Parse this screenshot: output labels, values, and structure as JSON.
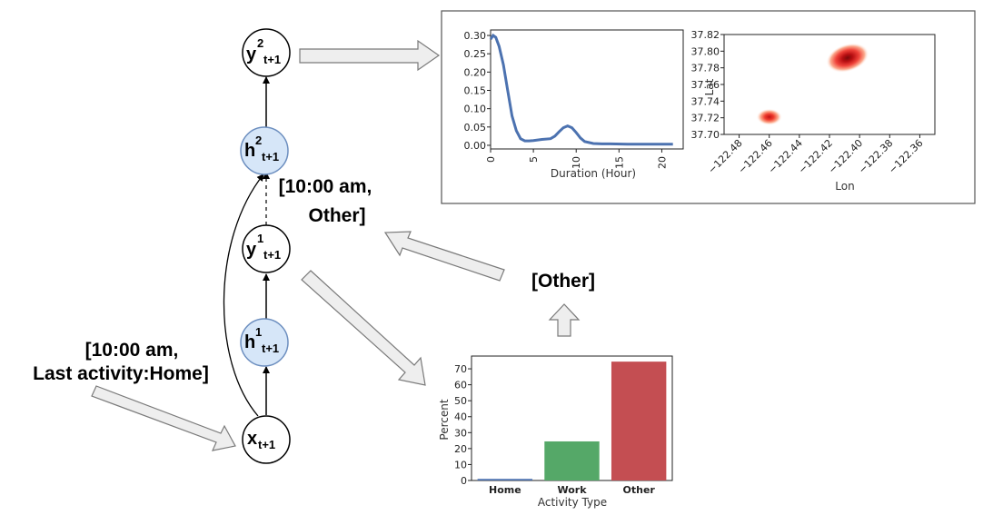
{
  "nodes": {
    "y2": {
      "base": "y",
      "sup": "2",
      "sub": "t+1"
    },
    "h2": {
      "base": "h",
      "sup": "2",
      "sub": "t+1"
    },
    "y1": {
      "base": "y",
      "sup": "1",
      "sub": "t+1"
    },
    "h1": {
      "base": "h",
      "sup": "1",
      "sub": "t+1"
    },
    "x": {
      "base": "x",
      "sub": "t+1"
    }
  },
  "annotations": {
    "input_line1": "[10:00 am,",
    "input_line2": "Last activity:Home]",
    "mid_line1": "[10:00 am,",
    "mid_line2": "Other]",
    "sampled": "[Other]"
  },
  "colors": {
    "hidden_fill": "#d6e6f8",
    "hidden_stroke": "#6c8ebf",
    "line_series": "#4c72b0",
    "bar_home": "#4c72b0",
    "bar_work": "#55a868",
    "bar_other": "#c44e52",
    "heat_core": "#8b0000",
    "heat_mid": "#e8302a",
    "heat_edge": "#fdd9c8"
  },
  "chart_data": [
    {
      "type": "line",
      "title": "",
      "xlabel": "Duration (Hour)",
      "ylabel": "",
      "xlim": [
        0,
        22.5
      ],
      "ylim": [
        -0.01,
        0.315
      ],
      "xticks": [
        "0",
        "5",
        "10",
        "15",
        "20"
      ],
      "yticks": [
        "0.00",
        "0.05",
        "0.10",
        "0.15",
        "0.20",
        "0.25",
        "0.30"
      ],
      "x": [
        0,
        0.3,
        0.6,
        1,
        1.5,
        2,
        2.5,
        3,
        3.5,
        4,
        4.5,
        5,
        6,
        7,
        7.5,
        8,
        8.5,
        9,
        9.5,
        10,
        10.5,
        11,
        12,
        13,
        14,
        16,
        18,
        20,
        21.3
      ],
      "y": [
        0.29,
        0.3,
        0.295,
        0.27,
        0.22,
        0.15,
        0.08,
        0.04,
        0.018,
        0.012,
        0.012,
        0.013,
        0.016,
        0.018,
        0.025,
        0.037,
        0.048,
        0.053,
        0.048,
        0.035,
        0.02,
        0.01,
        0.005,
        0.004,
        0.004,
        0.003,
        0.003,
        0.003,
        0.003
      ]
    },
    {
      "type": "heatmap",
      "title": "",
      "xlabel": "Lon",
      "ylabel": "Lat",
      "xlim": [
        -122.49,
        -122.35
      ],
      "ylim": [
        37.7,
        37.82
      ],
      "xticks": [
        "−122.48",
        "−122.46",
        "−122.44",
        "−122.42",
        "−122.40",
        "−122.38",
        "−122.36"
      ],
      "yticks": [
        "37.70",
        "37.72",
        "37.74",
        "37.76",
        "37.78",
        "37.80",
        "37.82"
      ],
      "hotspots": [
        {
          "lon": -122.408,
          "lat": 37.792,
          "intensity": 1.0
        },
        {
          "lon": -122.46,
          "lat": 37.721,
          "intensity": 0.75
        }
      ]
    },
    {
      "type": "bar",
      "title": "",
      "xlabel": "Activity Type",
      "ylabel": "Percent",
      "categories": [
        "Home",
        "Work",
        "Other"
      ],
      "values": [
        1,
        24.5,
        74.5
      ],
      "ylim": [
        0,
        78
      ],
      "yticks": [
        "0",
        "10",
        "20",
        "30",
        "40",
        "50",
        "60",
        "70"
      ]
    }
  ]
}
